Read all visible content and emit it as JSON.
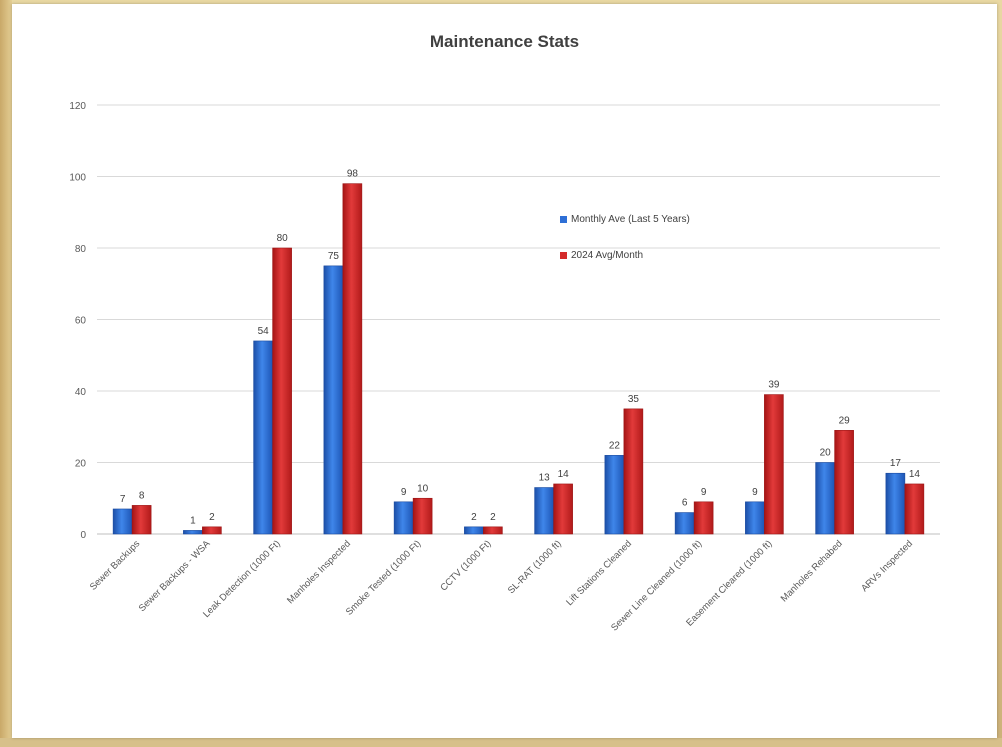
{
  "chart_data": {
    "type": "bar",
    "title": "Maintenance Stats",
    "xlabel": "",
    "ylabel": "",
    "ylim": [
      0,
      120
    ],
    "yticks": [
      "0",
      "20",
      "40",
      "60",
      "80",
      "100",
      "120"
    ],
    "grid": true,
    "legend_position": "upper-center-right",
    "categories": [
      "Sewer Backups",
      "Sewer Backups - WSA",
      "Leak Detection (1000 Ft)",
      "Manholes Inspected",
      "Smoke Tested (1000 Ft)",
      "CCTV (1000 Ft)",
      "SL-RAT (1000 ft)",
      "Lift Stations Cleaned",
      "Sewer Line Cleaned (1000 ft)",
      "Easement Cleared (1000 ft)",
      "Manholes Rehabed",
      "ARVs Inspected"
    ],
    "series": [
      {
        "name": "Monthly Ave (Last 5 Years)",
        "color": "#2e6fd6",
        "values": [
          7,
          1,
          54,
          75,
          9,
          2,
          13,
          22,
          6,
          9,
          20,
          17
        ],
        "labels": [
          "7",
          "1",
          "54",
          "75",
          "9",
          "2",
          "13",
          "22",
          "6",
          "9",
          "20",
          "17"
        ]
      },
      {
        "name": "2024 Avg/Month",
        "color": "#d42b2b",
        "values": [
          8,
          2,
          80,
          98,
          10,
          2,
          14,
          35,
          9,
          39,
          29,
          14
        ],
        "labels": [
          "8",
          "2",
          "80",
          "98",
          "10",
          "2",
          "14",
          "35",
          "9",
          "39",
          "29",
          "14"
        ]
      }
    ]
  }
}
